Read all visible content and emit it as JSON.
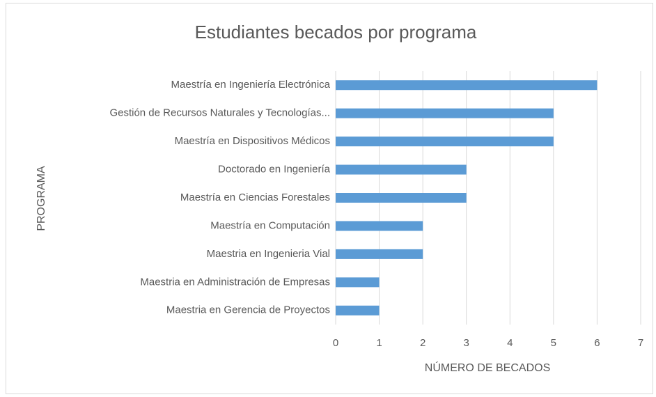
{
  "chart_data": {
    "type": "bar",
    "orientation": "horizontal",
    "title": "Estudiantes becados por programa",
    "x_label": "NÚMERO DE BECADOS",
    "y_label": "PROGRAMA",
    "categories": [
      "Maestría en Ingeniería Electrónica",
      "Gestión de Recursos Naturales y Tecnologías...",
      "Maestría en Dispositivos Médicos",
      "Doctorado en Ingeniería",
      "Maestría en Ciencias Forestales",
      "Maestría en Computación",
      "Maestria en Ingenieria Vial",
      "Maestria en Administración de Empresas",
      "Maestria en Gerencia de Proyectos"
    ],
    "values": [
      6,
      5,
      5,
      3,
      3,
      2,
      2,
      1,
      1
    ],
    "color": "#5b9bd5",
    "xlim": [
      0,
      7
    ],
    "xticks": [
      0,
      1,
      2,
      3,
      4,
      5,
      6,
      7
    ],
    "grid": true
  }
}
